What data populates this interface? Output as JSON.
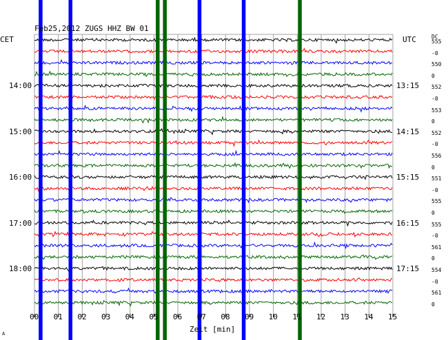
{
  "chart_data": {
    "type": "line",
    "title": "Feb25,2012   ZUGS HHZ BW 01",
    "left_axis_label": "CET",
    "right_axis_label": "UTC",
    "dc_header": "DC",
    "xlabel": "Zeit [min]",
    "x_range": [
      0,
      15
    ],
    "x_ticks": [
      "00",
      "01",
      "02",
      "03",
      "04",
      "05",
      "06",
      "07",
      "08",
      "09",
      "10",
      "11",
      "12",
      "13",
      "14",
      "15"
    ],
    "trace_count": 24,
    "trace_colors": [
      "#000000",
      "#ff0000",
      "#0000ff",
      "#006400"
    ],
    "left_time_labels": [
      {
        "trace": 4,
        "label": "14:00"
      },
      {
        "trace": 8,
        "label": "15:00"
      },
      {
        "trace": 12,
        "label": "16:00"
      },
      {
        "trace": 16,
        "label": "17:00"
      },
      {
        "trace": 20,
        "label": "18:00"
      }
    ],
    "right_time_labels": [
      {
        "trace": 4,
        "label": "13:15"
      },
      {
        "trace": 8,
        "label": "14:15"
      },
      {
        "trace": 12,
        "label": "15:15"
      },
      {
        "trace": 16,
        "label": "16:15"
      },
      {
        "trace": 20,
        "label": "17:15"
      }
    ],
    "dc_values": [
      "555",
      "-0",
      "550",
      "0",
      "552",
      "-0",
      "553",
      "0",
      "552",
      "-0",
      "556",
      "0",
      "551",
      "-0",
      "555",
      "0",
      "555",
      "-0",
      "561",
      "0",
      "554",
      "-0",
      "561",
      "0"
    ],
    "events": [
      {
        "x": 0.25,
        "color": "#0000ff"
      },
      {
        "x": 1.5,
        "color": "#0000ff"
      },
      {
        "x": 5.15,
        "color": "#006400"
      },
      {
        "x": 5.45,
        "color": "#006400"
      },
      {
        "x": 6.9,
        "color": "#0000ff"
      },
      {
        "x": 8.75,
        "color": "#0000ff"
      },
      {
        "x": 11.1,
        "color": "#006400"
      }
    ],
    "corner_mark": "A"
  }
}
